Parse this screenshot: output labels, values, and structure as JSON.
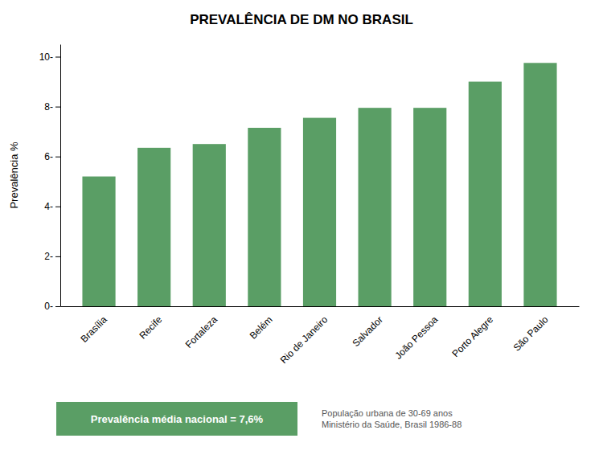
{
  "chart_data": {
    "type": "bar",
    "title": "PREVALÊNCIA DE DM NO BRASIL",
    "categories": [
      "Brasília",
      "Recife",
      "Fortaleza",
      "Belém",
      "Rio de Janeiro",
      "Salvador",
      "João Pessoa",
      "Porto Alegre",
      "São Paulo"
    ],
    "values": [
      5.2,
      6.35,
      6.5,
      7.15,
      7.55,
      7.95,
      7.95,
      9.0,
      9.75
    ],
    "color": "#5a9e65",
    "ylabel": "Prevalência %",
    "ylim": [
      0,
      10.5
    ],
    "yticks": [
      {
        "value": 0,
        "label": "0-"
      },
      {
        "value": 2,
        "label": "2-"
      },
      {
        "value": 4,
        "label": "4-"
      },
      {
        "value": 6,
        "label": "6-"
      },
      {
        "value": 8,
        "label": "8-"
      },
      {
        "value": 10,
        "label": "10-"
      }
    ],
    "grid": false,
    "annotations": [
      "Prevalência média nacional = 7,6%",
      "População urbana de 30-69 anos\nMinistério da Saúde, Brasil 1986-88"
    ]
  }
}
